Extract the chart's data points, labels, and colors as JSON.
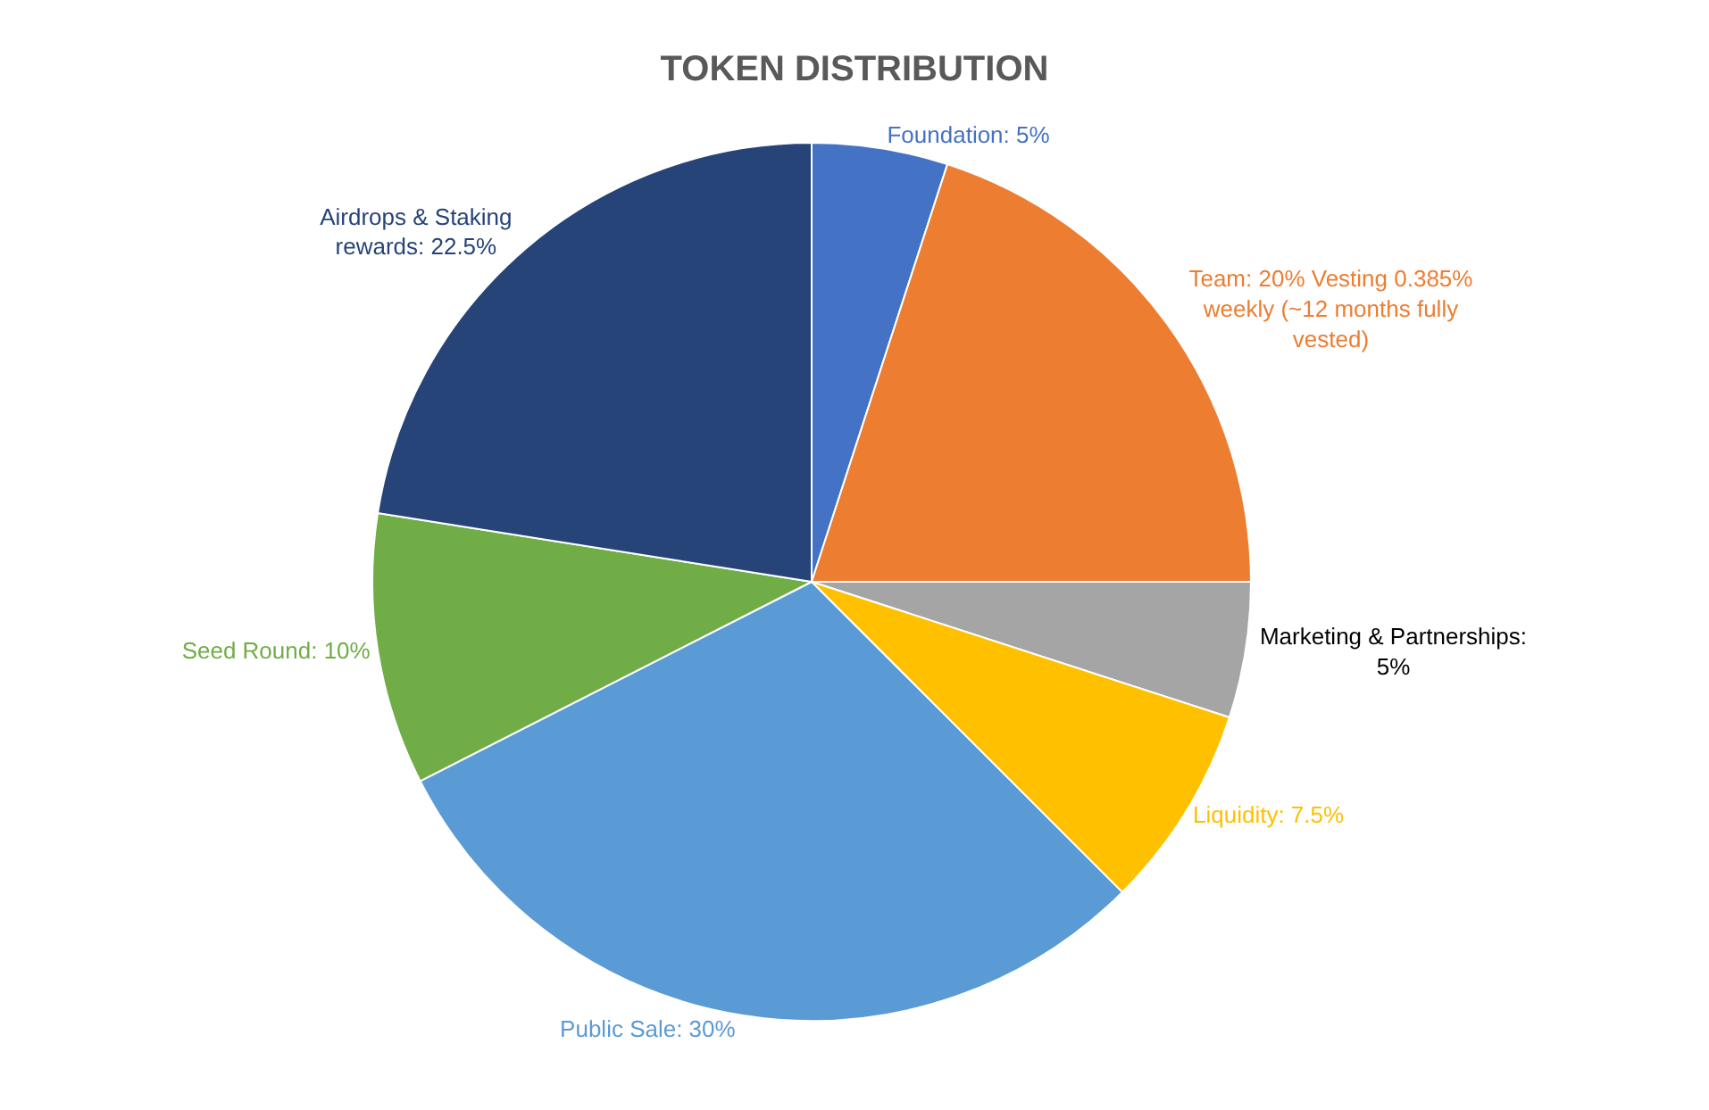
{
  "chart_data": {
    "type": "pie",
    "title": "TOKEN DISTRIBUTION",
    "categories": [
      "Foundation: 5%",
      "Team: 20% Vesting 0.385% weekly (~12 months fully vested)",
      "Marketing & Partnerships: 5%",
      "Liquidity: 7.5%",
      "Public Sale: 30%",
      "Seed Round: 10%",
      "Airdrops & Staking rewards: 22.5%"
    ],
    "values": [
      5,
      20,
      5,
      7.5,
      30,
      10,
      22.5
    ],
    "colors": [
      "#4472c4",
      "#ed7d31",
      "#a5a5a5",
      "#ffc000",
      "#5b9bd5",
      "#70ad47",
      "#264478"
    ],
    "legend": false
  }
}
